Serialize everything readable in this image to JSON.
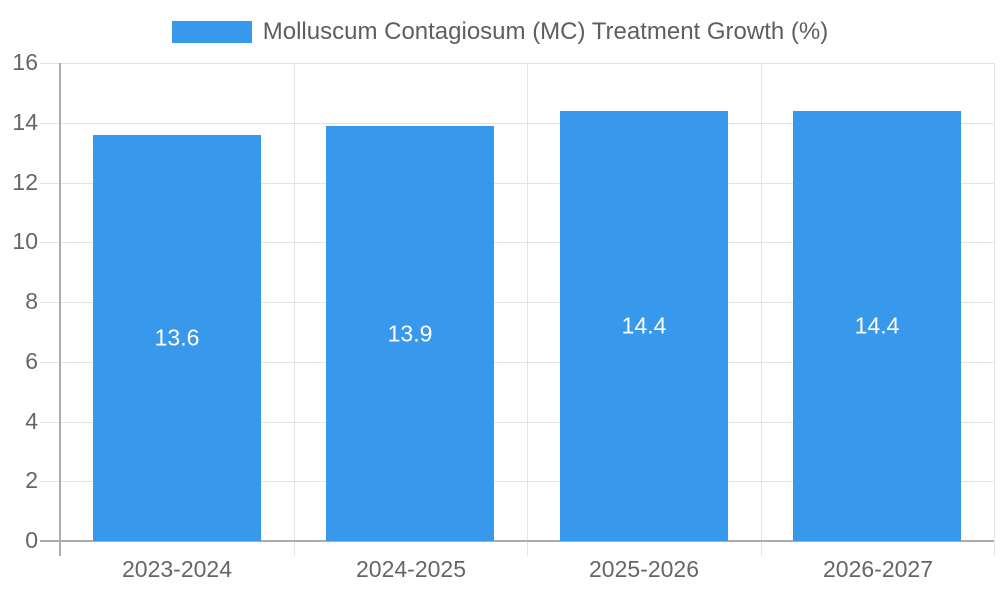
{
  "chart_data": {
    "type": "bar",
    "title": "Molluscum Contagiosum (MC) Treatment Growth (%)",
    "legend_position": "top",
    "categories": [
      "2023-2024",
      "2024-2025",
      "2025-2026",
      "2026-2027"
    ],
    "values": [
      13.6,
      13.9,
      14.4,
      14.4
    ],
    "value_labels": [
      "13.6",
      "13.9",
      "14.4",
      "14.4"
    ],
    "xlabel": "",
    "ylabel": "",
    "ylim": [
      0,
      16
    ],
    "ytick_step": 2,
    "yticks": [
      0,
      2,
      4,
      6,
      8,
      10,
      12,
      14,
      16
    ],
    "grid": true,
    "value_label_position": "inside-center",
    "colors": {
      "series": "#3898EC",
      "gridline": "#E4E4E4",
      "axis_line": "#ACACAC",
      "tick_label": "#666666",
      "legend_label": "#5E5E5E",
      "bar_label": "#FFFFFF",
      "background": "#FFFFFF"
    }
  }
}
